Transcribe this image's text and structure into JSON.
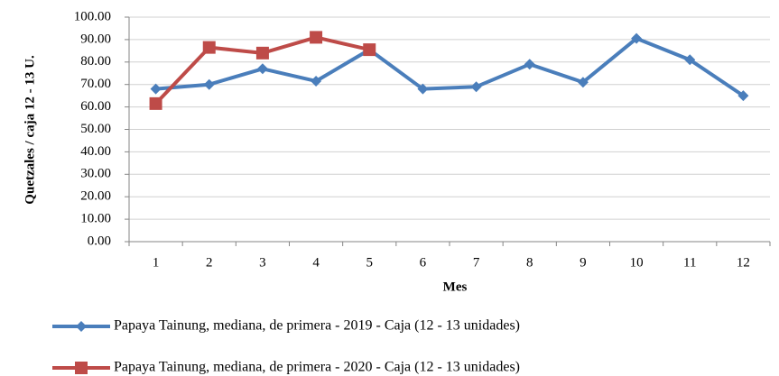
{
  "chart_data": {
    "type": "line",
    "x_label": "Mes",
    "y_label": "Quetzales / caja 12 - 13 U.",
    "categories": [
      "1",
      "2",
      "3",
      "4",
      "5",
      "6",
      "7",
      "8",
      "9",
      "10",
      "11",
      "12"
    ],
    "series": [
      {
        "name": "Papaya Tainung, mediana, de primera - 2019 - Caja (12 - 13 unidades)",
        "color": "#4a7ebb",
        "marker": "diamond",
        "values": [
          68,
          70,
          77,
          71.5,
          85.5,
          68,
          69,
          79,
          71,
          90.5,
          81,
          65
        ]
      },
      {
        "name": "Papaya Tainung, mediana, de primera - 2020 - Caja (12 - 13 unidades)",
        "color": "#be4b48",
        "marker": "square",
        "values": [
          61.5,
          86.5,
          84,
          91,
          85.5,
          null,
          null,
          null,
          null,
          null,
          null,
          null
        ]
      }
    ],
    "ylim": [
      0,
      100
    ],
    "yticks": [
      {
        "value": 0,
        "label": "0.00"
      },
      {
        "value": 10,
        "label": "10.00"
      },
      {
        "value": 20,
        "label": "20.00"
      },
      {
        "value": 30,
        "label": "30.00"
      },
      {
        "value": 40,
        "label": "40.00"
      },
      {
        "value": 50,
        "label": "50.00"
      },
      {
        "value": 60,
        "label": "60.00"
      },
      {
        "value": 70,
        "label": "70.00"
      },
      {
        "value": 80,
        "label": "80.00"
      },
      {
        "value": 90,
        "label": "90.00"
      },
      {
        "value": 100,
        "label": "100.00"
      }
    ],
    "grid": true,
    "legend": "bottom"
  }
}
